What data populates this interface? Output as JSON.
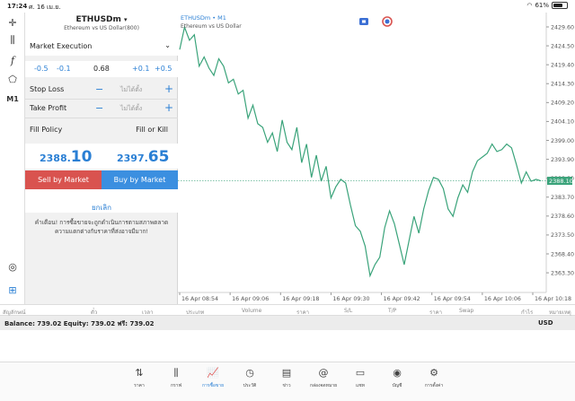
{
  "status": {
    "time": "17:24",
    "date": "ศ. 16 เม.ย.",
    "battery": "61%",
    "battery_level": 0.61
  },
  "toolbar": {
    "timeframe": "M1"
  },
  "order": {
    "symbol": "ETHUSDm",
    "symbol_desc": "Ethereum vs US Dollar(800)",
    "execution": "Market Execution",
    "volume": {
      "minus_05": "-0.5",
      "minus_01": "-0.1",
      "value": "0.68",
      "plus_01": "+0.1",
      "plus_05": "+0.5"
    },
    "stop_loss": {
      "label": "Stop Loss",
      "minus": "−",
      "placeholder": "ไม่ได้ตั้ง",
      "plus": "+"
    },
    "take_profit": {
      "label": "Take Profit",
      "minus": "−",
      "placeholder": "ไม่ได้ตั้ง",
      "plus": "+"
    },
    "fill_policy": {
      "label": "Fill Policy",
      "value": "Fill or Kill"
    },
    "bid": {
      "main": "2388.",
      "big": "10"
    },
    "ask": {
      "main": "2397.",
      "big": "65"
    },
    "sell_label": "Sell by Market",
    "buy_label": "Buy by Market",
    "cancel_label": "ยกเลิก",
    "warning_line1": "คำเตือน! การซื้อขายจะถูกดำเนินการตามสภาพตลาด",
    "warning_line2": "ความแตกต่างกับราคาที่ส่งอาจมีมาก!"
  },
  "chart": {
    "symbol": "ETHUSDm",
    "timeframe": "M1",
    "description": "Ethereum vs US Dollar",
    "current_price": "2388.10",
    "colors": {
      "line": "#3aa37a",
      "price_tag": "#3aa37a",
      "bid_line": "#3aa37a"
    }
  },
  "chart_data": {
    "type": "line",
    "x_tick_labels": [
      "16 Apr 08:54",
      "16 Apr 09:06",
      "16 Apr 09:18",
      "16 Apr 09:30",
      "16 Apr 09:42",
      "16 Apr 09:54",
      "16 Apr 10:06",
      "16 Apr 10:18"
    ],
    "y_tick_labels": [
      "2429.60",
      "2424.50",
      "2419.40",
      "2414.30",
      "2409.20",
      "2404.10",
      "2399.00",
      "2393.90",
      "2388.80",
      "2383.70",
      "2378.60",
      "2373.50",
      "2368.40",
      "2363.30"
    ],
    "ylim": [
      2358.0,
      2432.5
    ],
    "series": [
      {
        "values": [
          2423.5,
          2429.5,
          2426.0,
          2427.5,
          2419.0,
          2421.5,
          2418.5,
          2416.5,
          2421.0,
          2419.0,
          2414.5,
          2415.5,
          2411.5,
          2412.5,
          2405.0,
          2408.5,
          2403.5,
          2402.5,
          2398.5,
          2401.0,
          2396.0,
          2404.5,
          2398.5,
          2396.5,
          2402.5,
          2393.0,
          2398.0,
          2389.0,
          2395.0,
          2388.0,
          2392.0,
          2383.5,
          2386.5,
          2388.5,
          2387.5,
          2381.5,
          2376.0,
          2374.5,
          2370.5,
          2362.5,
          2365.5,
          2367.5,
          2375.5,
          2380.0,
          2376.5,
          2371.0,
          2365.5,
          2372.0,
          2378.5,
          2374.0,
          2380.5,
          2385.5,
          2389.0,
          2388.5,
          2386.0,
          2380.5,
          2378.5,
          2383.5,
          2387.0,
          2385.0,
          2390.5,
          2393.5,
          2394.5,
          2395.5,
          2398.0,
          2396.0,
          2396.5,
          2398.0,
          2397.0,
          2392.5,
          2387.5,
          2390.5,
          2388.0,
          2388.5,
          2388.1
        ]
      }
    ]
  },
  "positions_header": [
    "สัญลักษณ์",
    "ตั๋ว",
    "เวลา",
    "ประเภท",
    "Volume",
    "ราคา",
    "S/L",
    "T/P",
    "ราคา",
    "Swap",
    "กำไร",
    "หมายเหตุ"
  ],
  "balance": {
    "text": "Balance: 739.02 Equity: 739.02 ฟรี: 739.02",
    "currency": "USD"
  },
  "tabs": [
    {
      "label": "ราคา",
      "icon": "quotes-icon"
    },
    {
      "label": "กราฟ",
      "icon": "chart-candles-icon"
    },
    {
      "label": "การซื้อขาย",
      "icon": "trade-icon"
    },
    {
      "label": "ประวัติ",
      "icon": "history-icon"
    },
    {
      "label": "ข่าว",
      "icon": "news-icon"
    },
    {
      "label": "กล่องจดหมาย",
      "icon": "mailbox-icon"
    },
    {
      "label": "แชท",
      "icon": "chat-icon"
    },
    {
      "label": "บัญชี",
      "icon": "account-icon"
    },
    {
      "label": "การตั้งค่า",
      "icon": "settings-icon"
    }
  ]
}
